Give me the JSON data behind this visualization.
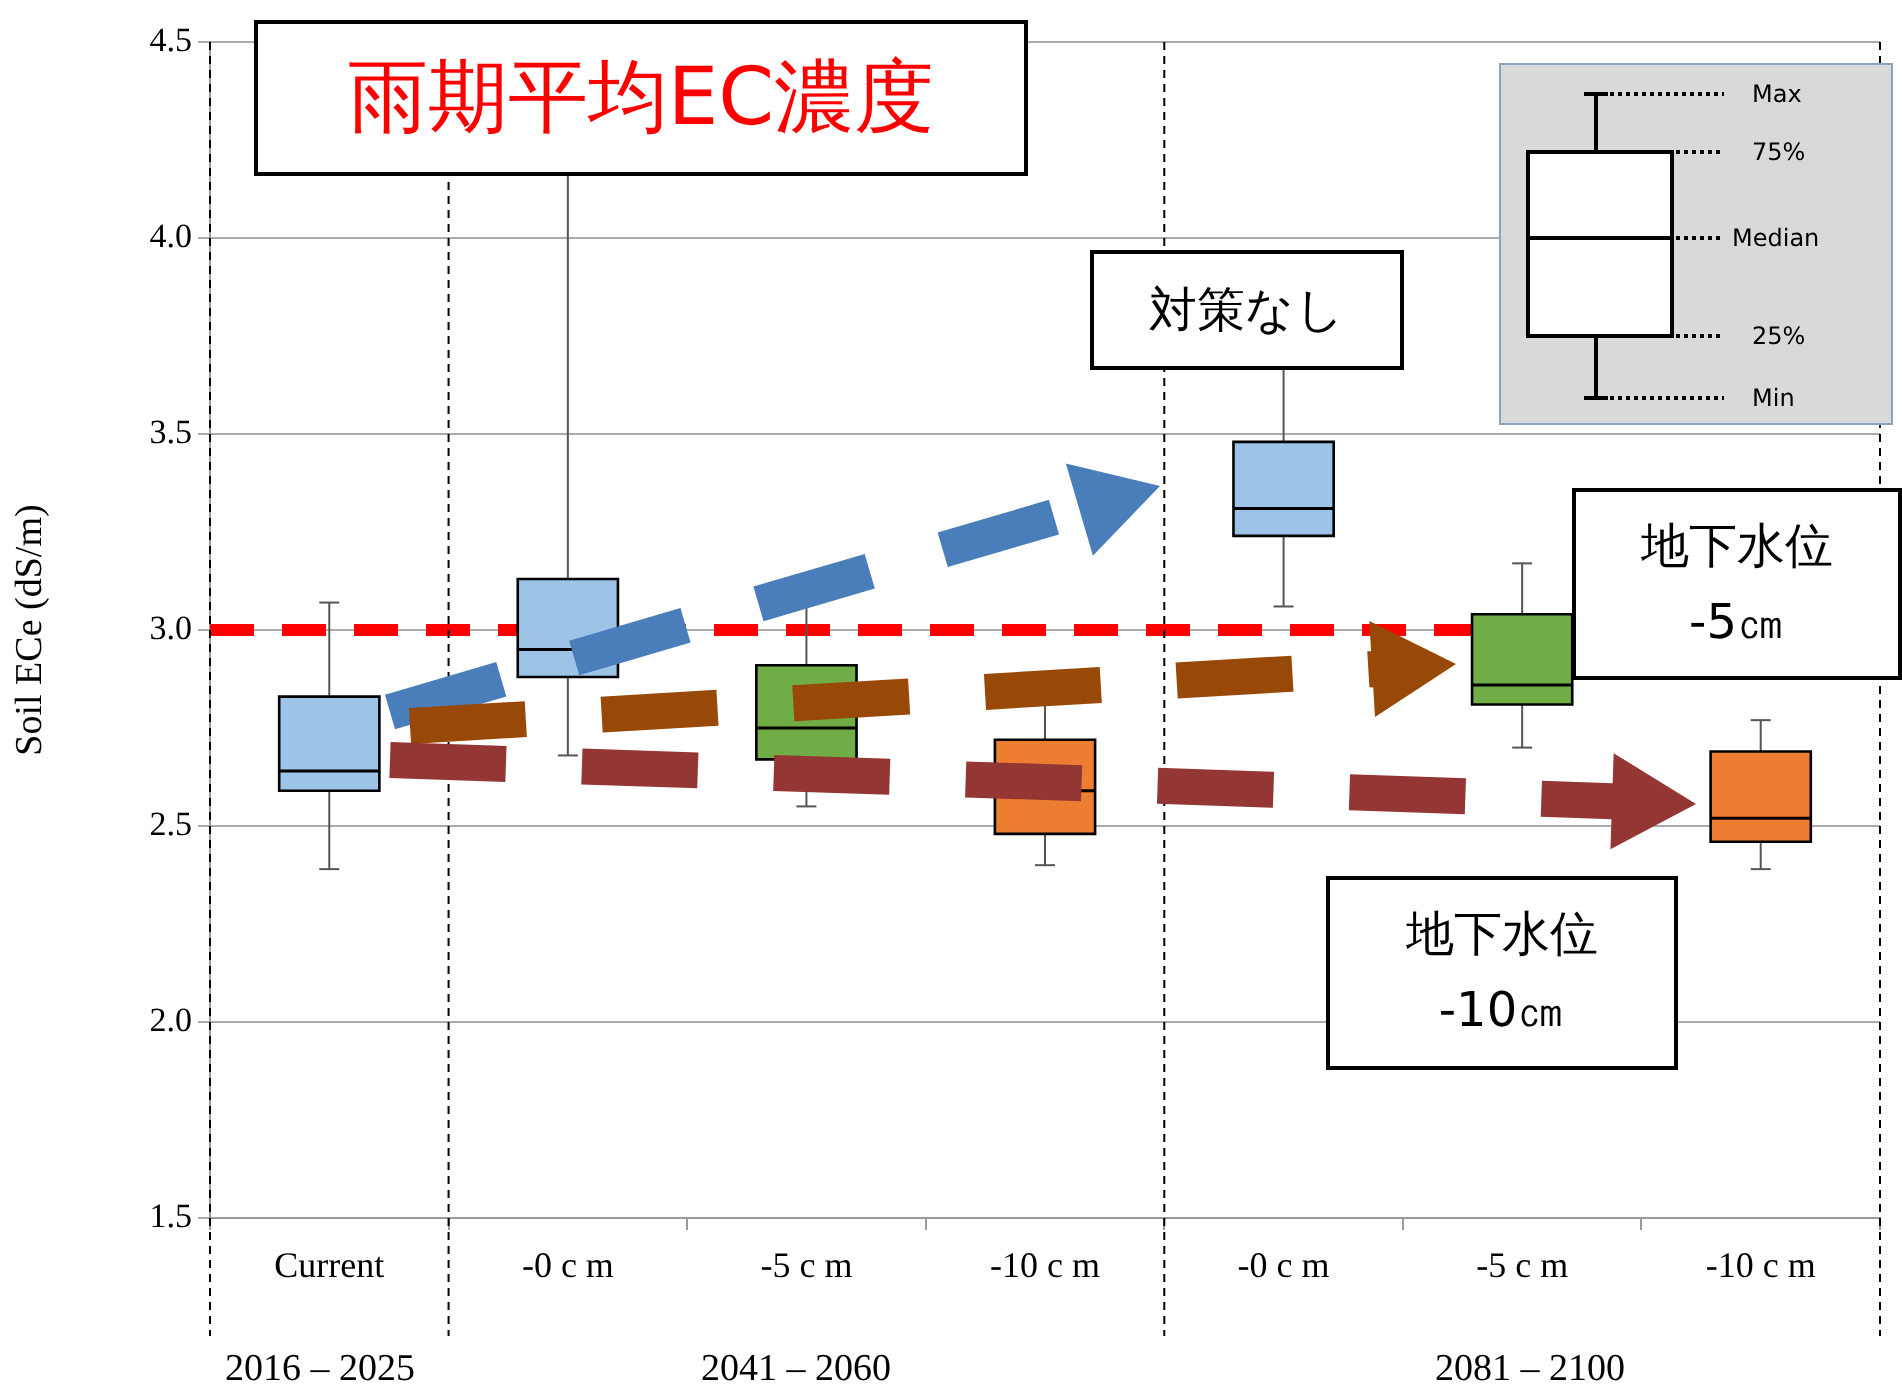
{
  "chart_data": {
    "type": "box",
    "title": "雨期平均EC濃度",
    "ylabel": "Soil ECe (dS/m)",
    "categories": [
      "Current",
      "-0 c m",
      "-5 c m",
      "-10 c m",
      "-0 c m",
      "-5 c m",
      "-10 c m"
    ],
    "colors": [
      "#9dc3e6",
      "#9dc3e6",
      "#70ad47",
      "#ed7d31",
      "#9dc3e6",
      "#70ad47",
      "#ed7d31"
    ],
    "boxes": [
      {
        "low": 2.39,
        "q1": 2.59,
        "median": 2.64,
        "q3": 2.83,
        "high": 3.07
      },
      {
        "low": 2.68,
        "q1": 2.88,
        "median": 2.95,
        "q3": 3.13,
        "high": 4.3
      },
      {
        "low": 2.55,
        "q1": 2.67,
        "median": 2.75,
        "q3": 2.91,
        "high": 3.1
      },
      {
        "low": 2.4,
        "q1": 2.48,
        "median": 2.59,
        "q3": 2.72,
        "high": 2.82
      },
      {
        "low": 3.06,
        "q1": 3.24,
        "median": 3.31,
        "q3": 3.48,
        "high": 3.67
      },
      {
        "low": 2.7,
        "q1": 2.81,
        "median": 2.86,
        "q3": 3.04,
        "high": 3.17
      },
      {
        "low": 2.39,
        "q1": 2.46,
        "median": 2.52,
        "q3": 2.69,
        "high": 2.77
      }
    ],
    "ylim": [
      1.5,
      4.5
    ],
    "yticks": [
      1.5,
      {
        "value": 2,
        "label": "2.0"
      },
      2.5,
      {
        "value": 3,
        "label": "3.0"
      },
      3.5,
      {
        "value": 4,
        "label": "4.0"
      },
      4.5
    ],
    "grid": "y",
    "legend": false,
    "ref_lines": [
      {
        "axis": "y",
        "value": 3,
        "color": "#ff0000",
        "line_style": "dashed"
      }
    ],
    "annotations": [
      "対策なし",
      "地下水位\n-5㎝",
      "地下水位\n-10㎝",
      "2016 – 2025",
      "2041 – 2060",
      "2081 – 2100",
      "Max",
      "75%",
      "Median",
      "25%",
      "Min"
    ]
  }
}
